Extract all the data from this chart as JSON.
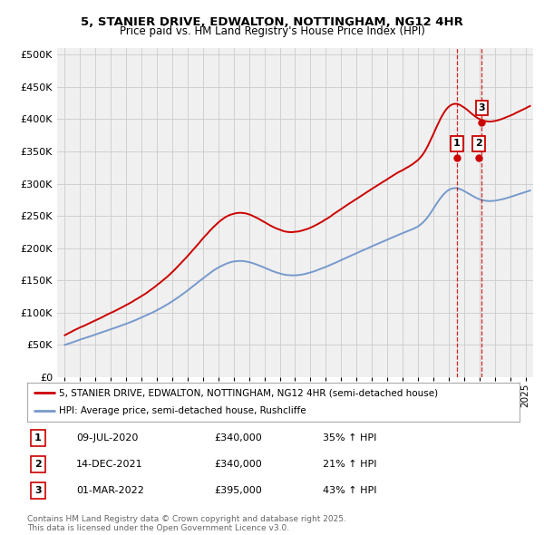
{
  "title1": "5, STANIER DRIVE, EDWALTON, NOTTINGHAM, NG12 4HR",
  "title2": "Price paid vs. HM Land Registry's House Price Index (HPI)",
  "ytick_values": [
    0,
    50000,
    100000,
    150000,
    200000,
    250000,
    300000,
    350000,
    400000,
    450000,
    500000
  ],
  "ytick_labels": [
    "£0",
    "£50K",
    "£100K",
    "£150K",
    "£200K",
    "£250K",
    "£300K",
    "£350K",
    "£400K",
    "£450K",
    "£500K"
  ],
  "xlim": [
    1994.5,
    2025.5
  ],
  "ylim": [
    0,
    510000
  ],
  "legend_line1": "5, STANIER DRIVE, EDWALTON, NOTTINGHAM, NG12 4HR (semi-detached house)",
  "legend_line2": "HPI: Average price, semi-detached house, Rushcliffe",
  "line_color_red": "#cc0000",
  "line_color_blue": "#7799cc",
  "sale_points": [
    {
      "label": "1",
      "date": "09-JUL-2020",
      "price": "£340,000",
      "hpi": "35% ↑ HPI",
      "year": 2020.52,
      "value": 340000
    },
    {
      "label": "2",
      "date": "14-DEC-2021",
      "price": "£340,000",
      "hpi": "21% ↑ HPI",
      "year": 2021.95,
      "value": 340000
    },
    {
      "label": "3",
      "date": "01-MAR-2022",
      "price": "£395,000",
      "hpi": "43% ↑ HPI",
      "year": 2022.16,
      "value": 395000
    }
  ],
  "dashed_lines_at": [
    2020.52,
    2022.16
  ],
  "copyright": "Contains HM Land Registry data © Crown copyright and database right 2025.\nThis data is licensed under the Open Government Licence v3.0.",
  "bg_color": "#ffffff",
  "plot_bg_color": "#f0f0f0",
  "grid_color": "#cccccc"
}
